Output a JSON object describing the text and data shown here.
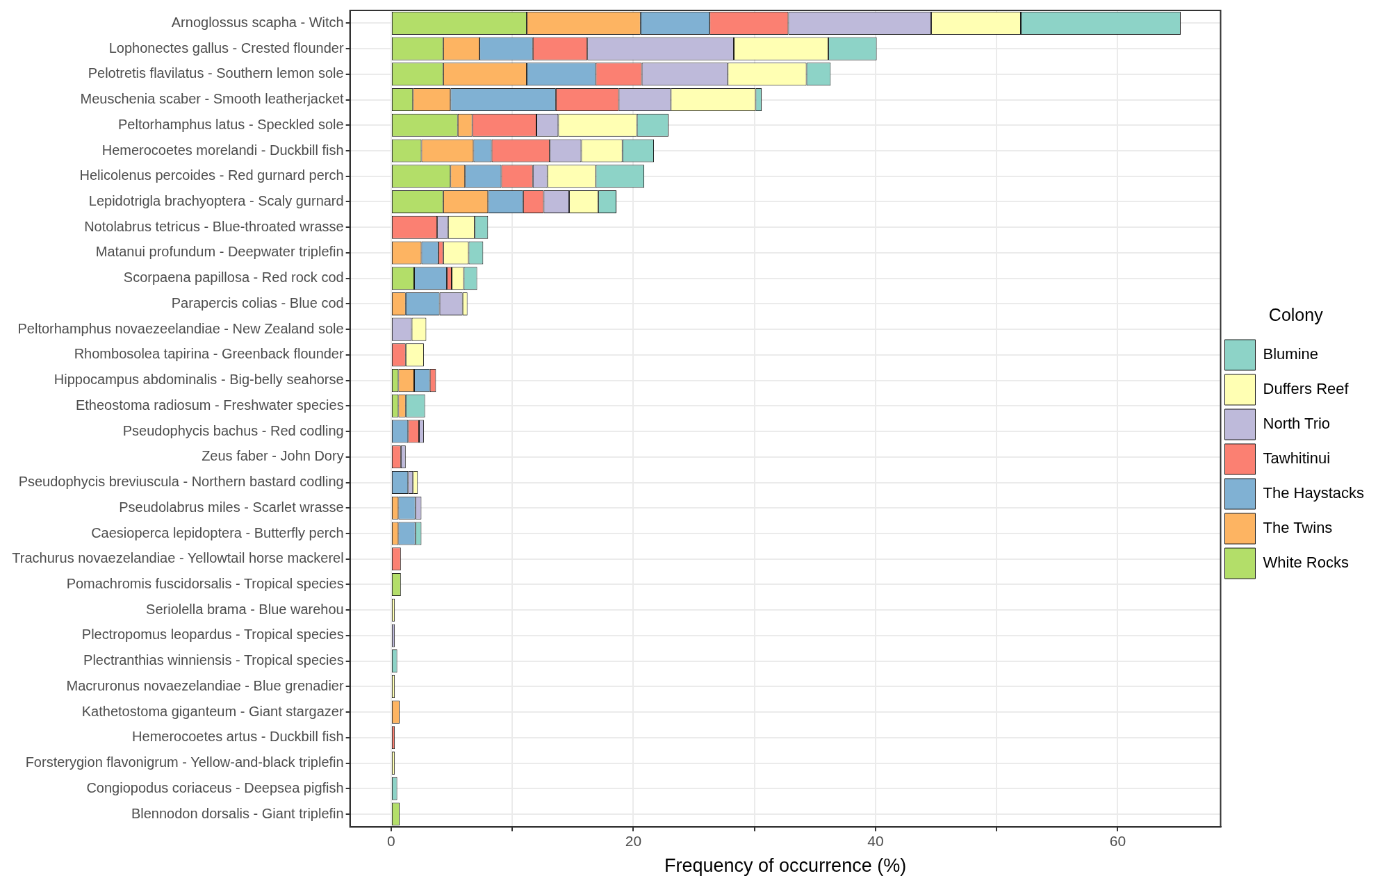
{
  "chart_data": {
    "type": "bar",
    "orientation": "horizontal",
    "stacked": true,
    "xlabel": "Frequency of occurrence (%)",
    "legend_title": "Colony",
    "legend": "right",
    "grid": true,
    "categories": [
      "Arnoglossus scapha - Witch",
      "Lophonectes gallus - Crested flounder",
      "Pelotretis flavilatus - Southern lemon sole",
      "Meuschenia scaber - Smooth leatherjacket",
      "Peltorhamphus latus - Speckled sole",
      "Hemerocoetes morelandi - Duckbill fish",
      "Helicolenus percoides - Red gurnard perch",
      "Lepidotrigla brachyoptera - Scaly gurnard",
      "Notolabrus tetricus - Blue-throated wrasse",
      "Matanui profundum - Deepwater triplefin",
      "Scorpaena papillosa - Red rock cod",
      "Parapercis colias - Blue cod",
      "Peltorhamphus novaezeelandiae - New Zealand sole",
      "Rhombosolea tapirina - Greenback flounder",
      "Hippocampus abdominalis - Big-belly seahorse",
      "Etheostoma radiosum - Freshwater species",
      "Pseudophycis bachus - Red codling",
      "Zeus faber - John Dory",
      "Pseudophycis breviuscula - Northern bastard codling",
      "Pseudolabrus miles - Scarlet wrasse",
      "Caesioperca lepidoptera - Butterfly perch",
      "Trachurus novaezelandiae - Yellowtail horse mackerel",
      "Pomachromis fuscidorsalis - Tropical species",
      "Seriolella brama - Blue warehou",
      "Plectropomus leopardus - Tropical species",
      "Plectranthias winniensis - Tropical species",
      "Macruronus novaezelandiae - Blue grenadier",
      "Kathetostoma giganteum - Giant stargazer",
      "Hemerocoetes artus - Duckbill fish",
      "Forsterygion flavonigrum - Yellow-and-black triplefin",
      "Congiopodus coriaceus - Deepsea pigfish",
      "Blennodon dorsalis - Giant triplefin"
    ],
    "xlim": [
      -3.4,
      68.5
    ],
    "xticks": [
      0,
      {
        "value": 10,
        "label": null
      },
      20,
      {
        "value": 30,
        "label": null
      },
      40,
      {
        "value": 50,
        "label": null
      },
      60
    ],
    "series": [
      {
        "name": "White Rocks",
        "color": "#b3de69",
        "values": [
          11.2,
          4.3,
          4.3,
          1.8,
          5.5,
          2.5,
          4.9,
          4.3,
          null,
          null,
          1.9,
          null,
          null,
          null,
          0.6,
          0.6,
          null,
          null,
          null,
          null,
          null,
          null,
          0.8,
          null,
          null,
          null,
          null,
          null,
          null,
          null,
          null,
          0.7
        ]
      },
      {
        "name": "The Twins",
        "color": "#fdb462",
        "values": [
          9.4,
          3.0,
          6.9,
          3.1,
          1.2,
          4.3,
          1.2,
          3.7,
          null,
          2.5,
          null,
          1.2,
          null,
          null,
          1.3,
          0.6,
          null,
          null,
          null,
          0.6,
          0.6,
          null,
          null,
          null,
          null,
          null,
          null,
          0.7,
          null,
          null,
          null,
          null
        ]
      },
      {
        "name": "The Haystacks",
        "color": "#80b1d3",
        "values": [
          5.7,
          4.4,
          5.7,
          8.7,
          null,
          1.5,
          3.0,
          2.9,
          null,
          1.4,
          2.7,
          2.8,
          null,
          null,
          1.3,
          null,
          1.4,
          null,
          1.4,
          1.4,
          1.4,
          null,
          null,
          null,
          null,
          null,
          null,
          null,
          null,
          null,
          null,
          null
        ]
      },
      {
        "name": "Tawhitinui",
        "color": "#fb8072",
        "values": [
          6.5,
          4.5,
          3.8,
          5.2,
          5.3,
          4.8,
          2.6,
          1.7,
          3.8,
          0.4,
          0.4,
          null,
          null,
          1.2,
          0.5,
          null,
          0.9,
          0.8,
          null,
          null,
          null,
          0.8,
          null,
          null,
          null,
          null,
          null,
          null,
          0.3,
          null,
          null,
          null
        ]
      },
      {
        "name": "North Trio",
        "color": "#bebada",
        "values": [
          11.8,
          12.1,
          7.1,
          4.3,
          1.8,
          2.6,
          1.2,
          2.1,
          0.9,
          null,
          null,
          1.9,
          1.7,
          null,
          null,
          null,
          0.4,
          0.4,
          0.4,
          0.5,
          null,
          null,
          null,
          null,
          0.3,
          null,
          null,
          null,
          null,
          null,
          null,
          null
        ]
      },
      {
        "name": "Duffers Reef",
        "color": "#ffffb3",
        "values": [
          7.4,
          7.8,
          6.5,
          7.0,
          6.5,
          3.4,
          4.0,
          2.4,
          2.2,
          2.1,
          1.0,
          0.4,
          1.2,
          1.5,
          null,
          null,
          null,
          null,
          0.4,
          null,
          null,
          null,
          null,
          0.3,
          null,
          null,
          0.3,
          null,
          null,
          0.3,
          null,
          null
        ]
      },
      {
        "name": "Blumine",
        "color": "#8dd3c7",
        "values": [
          13.2,
          4.0,
          2.0,
          0.5,
          2.6,
          2.6,
          4.0,
          1.5,
          1.1,
          1.2,
          1.1,
          null,
          null,
          null,
          null,
          1.6,
          null,
          null,
          null,
          null,
          0.5,
          null,
          null,
          null,
          null,
          0.5,
          null,
          null,
          null,
          null,
          0.5,
          null
        ]
      }
    ]
  }
}
